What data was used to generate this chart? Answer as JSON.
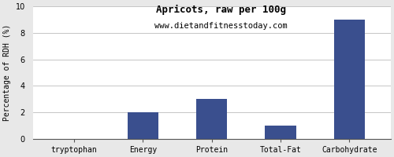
{
  "title": "Apricots, raw per 100g",
  "subtitle": "www.dietandfitnesstoday.com",
  "categories": [
    "tryptophan",
    "Energy",
    "Protein",
    "Total-Fat",
    "Carbohydrate"
  ],
  "values": [
    0,
    2,
    3,
    1,
    9
  ],
  "bar_color": "#3a4f8e",
  "ylabel": "Percentage of RDH (%)",
  "ylim": [
    0,
    10
  ],
  "yticks": [
    0,
    2,
    4,
    6,
    8,
    10
  ],
  "background_color": "#e8e8e8",
  "plot_bg_color": "#ffffff",
  "title_fontsize": 9,
  "subtitle_fontsize": 7.5,
  "tick_fontsize": 7,
  "ylabel_fontsize": 7,
  "bar_width": 0.45
}
